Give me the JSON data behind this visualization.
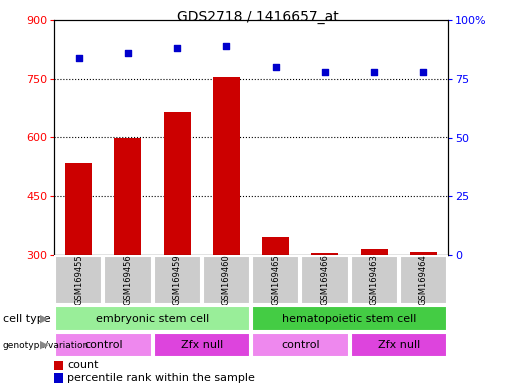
{
  "title": "GDS2718 / 1416657_at",
  "samples": [
    "GSM169455",
    "GSM169456",
    "GSM169459",
    "GSM169460",
    "GSM169465",
    "GSM169466",
    "GSM169463",
    "GSM169464"
  ],
  "counts": [
    535,
    600,
    665,
    755,
    345,
    305,
    315,
    307
  ],
  "percentile_ranks": [
    84,
    86,
    88,
    89,
    80,
    78,
    78,
    78
  ],
  "ylim_left": [
    300,
    900
  ],
  "ylim_right": [
    0,
    100
  ],
  "yticks_left": [
    300,
    450,
    600,
    750,
    900
  ],
  "yticks_right": [
    0,
    25,
    50,
    75,
    100
  ],
  "bar_color": "#cc0000",
  "dot_color": "#0000cc",
  "cell_type_groups": [
    {
      "label": "embryonic stem cell",
      "start": 0,
      "end": 4,
      "color": "#99ee99"
    },
    {
      "label": "hematopoietic stem cell",
      "start": 4,
      "end": 8,
      "color": "#44cc44"
    }
  ],
  "genotype_groups": [
    {
      "label": "control",
      "start": 0,
      "end": 2,
      "color": "#ee88ee"
    },
    {
      "label": "Zfx null",
      "start": 2,
      "end": 4,
      "color": "#dd44dd"
    },
    {
      "label": "control",
      "start": 4,
      "end": 6,
      "color": "#ee88ee"
    },
    {
      "label": "Zfx null",
      "start": 6,
      "end": 8,
      "color": "#dd44dd"
    }
  ],
  "legend_items": [
    {
      "color": "#cc0000",
      "label": "count"
    },
    {
      "color": "#0000cc",
      "label": "percentile rank within the sample"
    }
  ],
  "tick_label_bg": "#cccccc",
  "grid_color": "#000000",
  "title_fontsize": 10,
  "axis_fontsize": 8,
  "label_fontsize": 7.5,
  "annot_fontsize": 8
}
